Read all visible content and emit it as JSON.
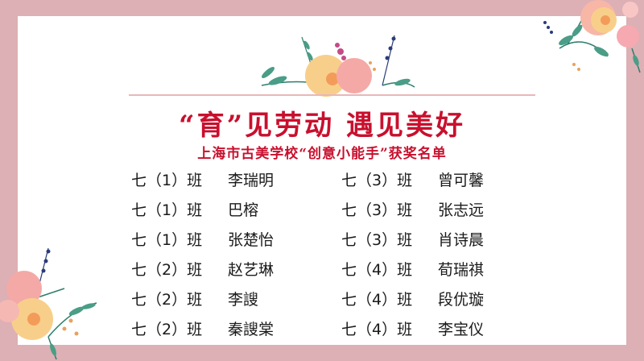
{
  "slide": {
    "title": "“育”见劳动 遇见美好",
    "subtitle": "上海市古美学校“创意小能手”获奖名单",
    "colors": {
      "accent": "#c8102e",
      "border": "#dcb0b4",
      "background": "#ffffff"
    },
    "left_column": [
      {
        "class": "七（1）班",
        "name": "李瑞明"
      },
      {
        "class": "七（1）班",
        "name": "巴榕"
      },
      {
        "class": "七（1）班",
        "name": "张楚怡"
      },
      {
        "class": "七（2）班",
        "name": "赵艺琳"
      },
      {
        "class": "七（2）班",
        "name": "李謏"
      },
      {
        "class": "七（2）班",
        "name": "秦謏棠"
      }
    ],
    "right_column": [
      {
        "class": "七（3）班",
        "name": "曾可馨"
      },
      {
        "class": "七（3）班",
        "name": "张志远"
      },
      {
        "class": "七（3）班",
        "name": "肖诗晨"
      },
      {
        "class": "七（4）班",
        "name": "荀瑞祺"
      },
      {
        "class": "七（4）班",
        "name": "段优璇"
      },
      {
        "class": "七（4）班",
        "name": "李宝仪"
      }
    ]
  }
}
